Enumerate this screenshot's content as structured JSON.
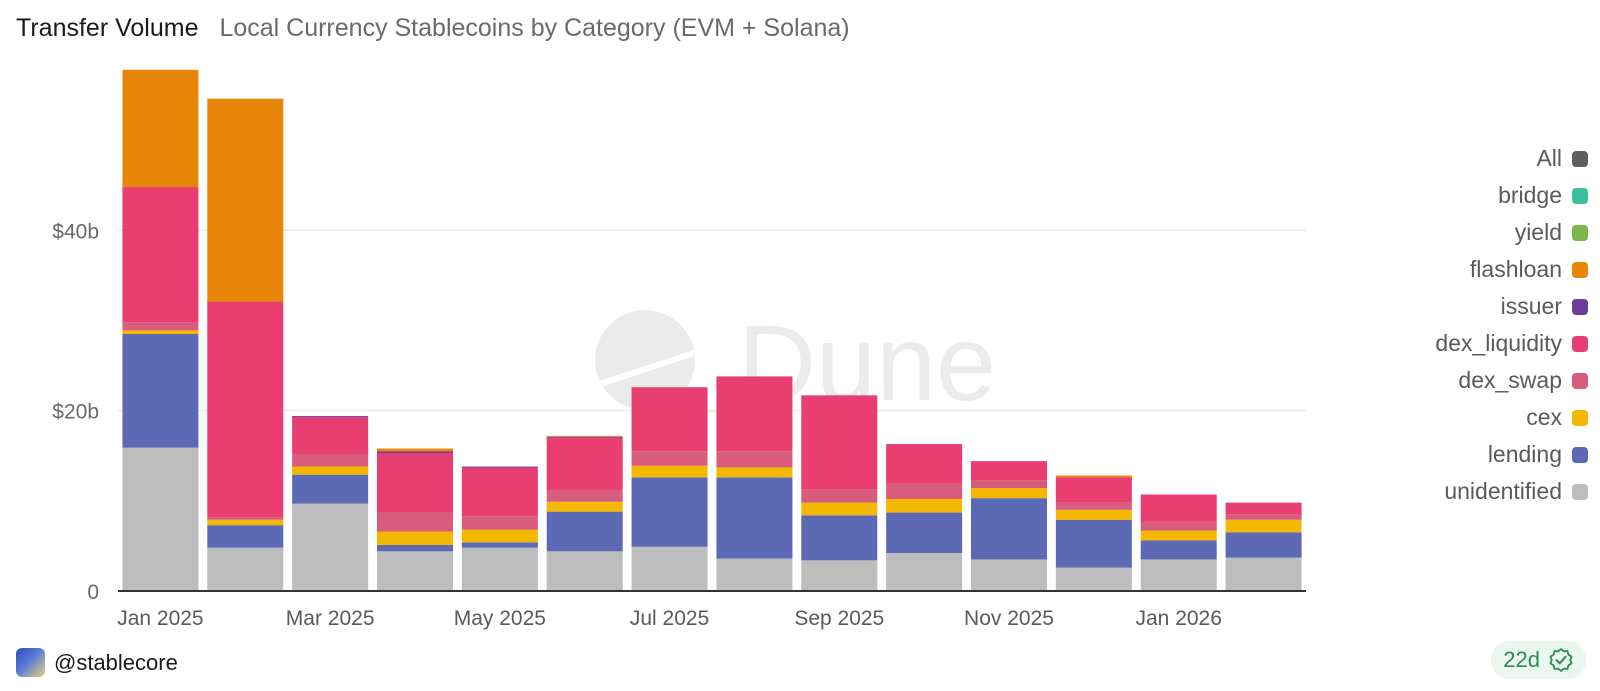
{
  "header": {
    "title": "Transfer Volume",
    "subtitle": "Local Currency Stablecoins by Category (EVM + Solana)"
  },
  "legend": {
    "items": [
      {
        "label": "All",
        "color": "#5f5f5f"
      },
      {
        "label": "bridge",
        "color": "#3dbf9e"
      },
      {
        "label": "yield",
        "color": "#7ab648"
      },
      {
        "label": "flashloan",
        "color": "#e8860a"
      },
      {
        "label": "issuer",
        "color": "#6a3d9a"
      },
      {
        "label": "dex_liquidity",
        "color": "#e83e72"
      },
      {
        "label": "dex_swap",
        "color": "#d85c7c"
      },
      {
        "label": "cex",
        "color": "#f5b800"
      },
      {
        "label": "lending",
        "color": "#5c6ab5"
      },
      {
        "label": "unidentified",
        "color": "#bdbdbd"
      }
    ]
  },
  "footer": {
    "user": "@stablecore",
    "age": "22d"
  },
  "watermark": "Dune",
  "chart_data": {
    "type": "bar",
    "stacked": true,
    "title": "Transfer Volume",
    "subtitle": "Local Currency Stablecoins by Category (EVM + Solana)",
    "xlabel": "",
    "ylabel": "",
    "ylim": [
      0,
      58
    ],
    "yticks": [
      0,
      20,
      40
    ],
    "ytick_labels": [
      "0",
      "$20b",
      "$40b"
    ],
    "categories": [
      "2025-01",
      "2025-02",
      "2025-03",
      "2025-04",
      "2025-05",
      "2025-06",
      "2025-07",
      "2025-08",
      "2025-09",
      "2025-10",
      "2025-11",
      "2025-12",
      "2026-01",
      "2026-02"
    ],
    "xtick_labels": [
      "Jan 2025",
      "Mar 2025",
      "May 2025",
      "Jul 2025",
      "Sep 2025",
      "Nov 2025",
      "Jan 2026"
    ],
    "grid": true,
    "legend_position": "right",
    "series": [
      {
        "name": "unidentified",
        "color": "#bdbdbd",
        "values": [
          15.9,
          4.8,
          9.7,
          4.4,
          4.8,
          4.4,
          4.9,
          3.6,
          3.4,
          4.2,
          3.5,
          2.6,
          3.5,
          3.7
        ]
      },
      {
        "name": "lending",
        "color": "#5c6ab5",
        "values": [
          12.6,
          2.5,
          3.2,
          0.7,
          0.6,
          4.4,
          7.7,
          9.0,
          5.0,
          4.5,
          6.8,
          5.3,
          2.1,
          2.8
        ]
      },
      {
        "name": "cex",
        "color": "#f5b800",
        "values": [
          0.4,
          0.6,
          0.9,
          1.5,
          1.4,
          1.1,
          1.3,
          1.1,
          1.4,
          1.5,
          1.1,
          1.1,
          1.1,
          1.4
        ]
      },
      {
        "name": "dex_swap",
        "color": "#d85c7c",
        "values": [
          0.9,
          0.3,
          1.3,
          2.1,
          1.5,
          1.3,
          1.6,
          1.8,
          1.5,
          1.7,
          0.9,
          0.8,
          1.0,
          0.6
        ]
      },
      {
        "name": "dex_liquidity",
        "color": "#e83e72",
        "values": [
          15.0,
          23.9,
          4.2,
          6.6,
          5.4,
          5.8,
          7.1,
          8.3,
          10.4,
          4.4,
          2.1,
          2.8,
          3.0,
          1.3
        ]
      },
      {
        "name": "issuer",
        "color": "#6a3d9a",
        "values": [
          0,
          0,
          0.1,
          0.2,
          0.1,
          0.1,
          0,
          0,
          0,
          0,
          0,
          0,
          0,
          0
        ]
      },
      {
        "name": "flashloan",
        "color": "#e8860a",
        "values": [
          13.0,
          22.5,
          0,
          0.3,
          0,
          0.1,
          0,
          0,
          0,
          0,
          0,
          0.2,
          0,
          0
        ]
      },
      {
        "name": "yield",
        "color": "#7ab648",
        "values": [
          0,
          0,
          0,
          0,
          0,
          0,
          0,
          0,
          0,
          0,
          0,
          0,
          0,
          0
        ]
      },
      {
        "name": "bridge",
        "color": "#3dbf9e",
        "values": [
          0,
          0,
          0,
          0,
          0,
          0,
          0,
          0,
          0,
          0,
          0,
          0,
          0,
          0
        ]
      }
    ]
  }
}
